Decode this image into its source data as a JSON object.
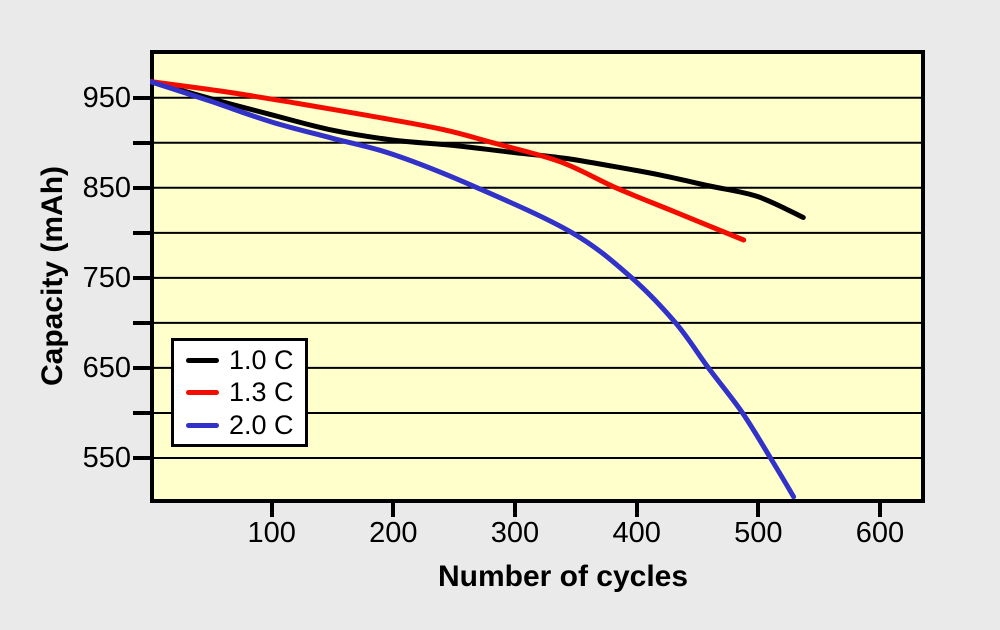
{
  "page": {
    "background_color": "#eaeaea",
    "plot_background_color": "#ffffcc",
    "axis_color": "#000000"
  },
  "chart_data": {
    "type": "line",
    "title": "",
    "xlabel": "Number of cycles",
    "ylabel": "Capacity (mAh)",
    "xlim": [
      0,
      637
    ],
    "ylim": [
      500,
      1003
    ],
    "x_tick_values": [
      100,
      200,
      300,
      400,
      500,
      600
    ],
    "x_tick_labels": [
      "100",
      "200",
      "300",
      "400",
      "500",
      "600"
    ],
    "y_gridline_values": [
      950,
      900,
      850,
      800,
      750,
      700,
      650,
      600,
      550
    ],
    "y_labeled_tick_values": [
      950,
      850,
      750,
      650,
      550
    ],
    "y_tick_labels": [
      "950",
      "850",
      "750",
      "650",
      "550"
    ],
    "grid": "horizontal-only",
    "legend_position": "inside-lower-left",
    "series": [
      {
        "name": "1.0 C",
        "color": "#000000",
        "points": [
          [
            0,
            968
          ],
          [
            50,
            949
          ],
          [
            100,
            931
          ],
          [
            150,
            914
          ],
          [
            200,
            903
          ],
          [
            250,
            897
          ],
          [
            300,
            889
          ],
          [
            340,
            883
          ],
          [
            380,
            874
          ],
          [
            420,
            864
          ],
          [
            460,
            852
          ],
          [
            500,
            840
          ],
          [
            537,
            817
          ]
        ]
      },
      {
        "name": "1.3 C",
        "color": "#f20d00",
        "points": [
          [
            0,
            968
          ],
          [
            60,
            957
          ],
          [
            120,
            944
          ],
          [
            180,
            930
          ],
          [
            240,
            915
          ],
          [
            282,
            900
          ],
          [
            337,
            879
          ],
          [
            383,
            850
          ],
          [
            430,
            824
          ],
          [
            488,
            792
          ]
        ]
      },
      {
        "name": "2.0 C",
        "color": "#3232c8",
        "points": [
          [
            0,
            968
          ],
          [
            50,
            946
          ],
          [
            100,
            923
          ],
          [
            150,
            905
          ],
          [
            200,
            887
          ],
          [
            269,
            850
          ],
          [
            347,
            800
          ],
          [
            396,
            750
          ],
          [
            432,
            700
          ],
          [
            459,
            650
          ],
          [
            487,
            600
          ],
          [
            510,
            550
          ],
          [
            529,
            507
          ]
        ]
      }
    ]
  }
}
